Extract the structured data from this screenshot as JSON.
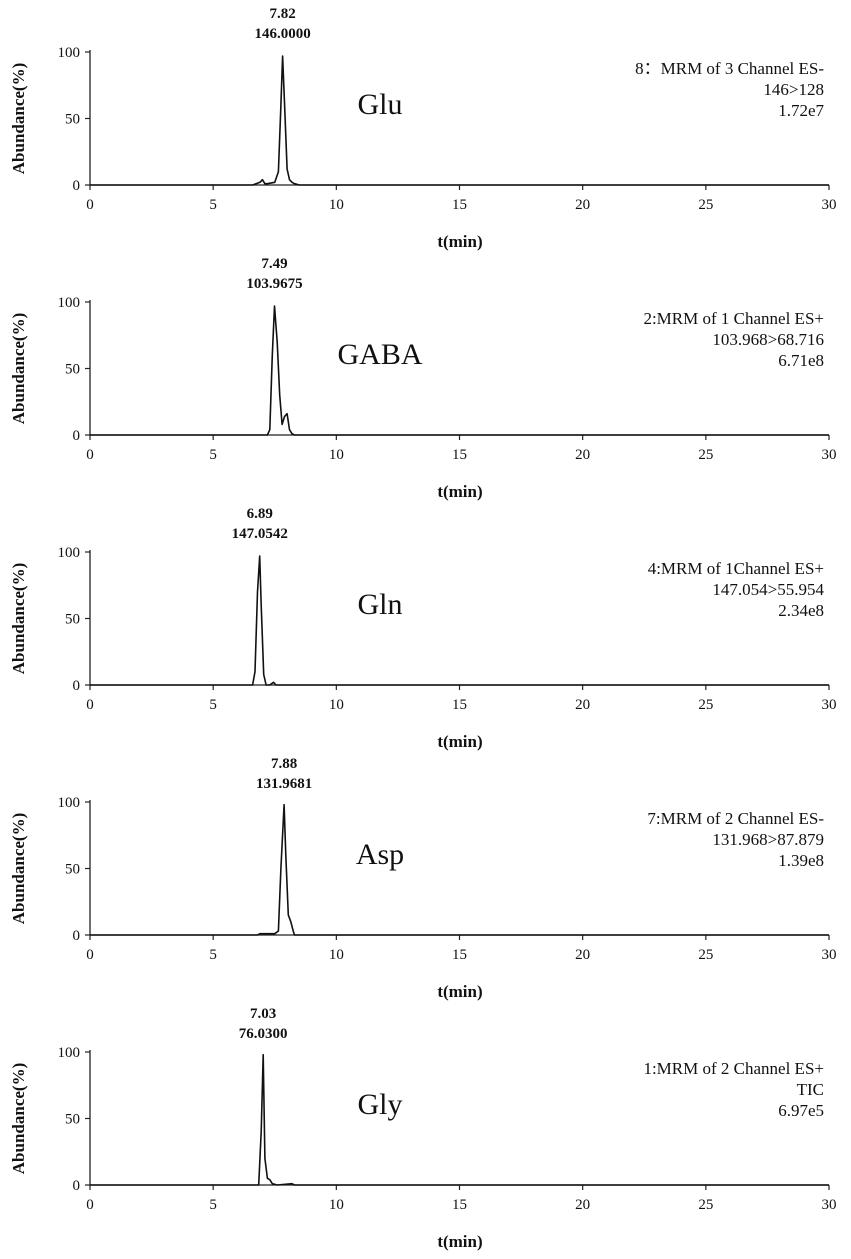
{
  "chart_data": [
    {
      "type": "line",
      "compound": "Glu",
      "peak_time": "7.82",
      "peak_mz": "146.0000",
      "channel_lines": [
        "8：MRM of 3 Channel ES-",
        "146>128",
        "1.72e7"
      ],
      "xlabel": "t(min)",
      "ylabel": "Abundance(%)",
      "xlim": [
        0,
        30
      ],
      "ylim": [
        0,
        100
      ],
      "xticks": [
        "0",
        "5",
        "10",
        "15",
        "20",
        "25",
        "30"
      ],
      "yticks": [
        "0",
        "50",
        "100"
      ],
      "grid": false,
      "series": [
        {
          "x": [
            0,
            6.6,
            6.9,
            7.0,
            7.1,
            7.2,
            7.5,
            7.65,
            7.75,
            7.82,
            7.9,
            8.0,
            8.1,
            8.2,
            8.3,
            8.5,
            30
          ],
          "y": [
            0,
            0,
            2,
            4,
            1,
            1,
            2,
            10,
            60,
            97,
            60,
            12,
            4,
            2,
            1,
            0,
            0
          ]
        }
      ]
    },
    {
      "type": "line",
      "compound": "GABA",
      "peak_time": "7.49",
      "peak_mz": "103.9675",
      "channel_lines": [
        "2:MRM of 1 Channel ES+",
        "103.968>68.716",
        "6.71e8"
      ],
      "xlabel": "t(min)",
      "ylabel": "Abundance(%)",
      "xlim": [
        0,
        30
      ],
      "ylim": [
        0,
        100
      ],
      "xticks": [
        "0",
        "5",
        "10",
        "15",
        "20",
        "25",
        "30"
      ],
      "yticks": [
        "0",
        "50",
        "100"
      ],
      "grid": false,
      "series": [
        {
          "x": [
            0,
            7.2,
            7.3,
            7.4,
            7.49,
            7.6,
            7.7,
            7.8,
            7.9,
            8.0,
            8.1,
            8.2,
            8.3,
            30
          ],
          "y": [
            0,
            0,
            4,
            60,
            97,
            70,
            30,
            8,
            14,
            16,
            4,
            1,
            0,
            0
          ]
        }
      ]
    },
    {
      "type": "line",
      "compound": "Gln",
      "peak_time": "6.89",
      "peak_mz": "147.0542",
      "channel_lines": [
        "4:MRM of 1Channel ES+",
        "147.054>55.954",
        "2.34e8"
      ],
      "xlabel": "t(min)",
      "ylabel": "Abundance(%)",
      "xlim": [
        0,
        30
      ],
      "ylim": [
        0,
        100
      ],
      "xticks": [
        "0",
        "5",
        "10",
        "15",
        "20",
        "25",
        "30"
      ],
      "yticks": [
        "0",
        "50",
        "100"
      ],
      "grid": false,
      "series": [
        {
          "x": [
            0,
            6.6,
            6.7,
            6.8,
            6.89,
            6.95,
            7.05,
            7.15,
            7.3,
            7.45,
            7.55,
            30
          ],
          "y": [
            0,
            0,
            10,
            70,
            97,
            60,
            8,
            0,
            0,
            2,
            0,
            0
          ]
        }
      ]
    },
    {
      "type": "line",
      "compound": "Asp",
      "peak_time": "7.88",
      "peak_mz": "131.9681",
      "channel_lines": [
        "7:MRM of 2 Channel ES-",
        "131.968>87.879",
        "1.39e8"
      ],
      "xlabel": "t(min)",
      "ylabel": "Abundance(%)",
      "xlim": [
        0,
        30
      ],
      "ylim": [
        0,
        100
      ],
      "xticks": [
        "0",
        "5",
        "10",
        "15",
        "20",
        "25",
        "30"
      ],
      "yticks": [
        "0",
        "50",
        "100"
      ],
      "grid": false,
      "series": [
        {
          "x": [
            0,
            6.8,
            6.9,
            7.1,
            7.5,
            7.65,
            7.75,
            7.88,
            7.95,
            8.05,
            8.15,
            8.25,
            8.3,
            30
          ],
          "y": [
            0,
            0,
            1,
            1,
            1,
            3,
            50,
            98,
            60,
            15,
            10,
            3,
            0,
            0
          ]
        }
      ]
    },
    {
      "type": "line",
      "compound": "Gly",
      "peak_time": "7.03",
      "peak_mz": "76.0300",
      "channel_lines": [
        "1:MRM of 2 Channel ES+",
        "TIC",
        "6.97e5"
      ],
      "xlabel": "t(min)",
      "ylabel": "Abundance(%)",
      "xlim": [
        0,
        30
      ],
      "ylim": [
        0,
        100
      ],
      "xticks": [
        "0",
        "5",
        "10",
        "15",
        "20",
        "25",
        "30"
      ],
      "yticks": [
        "0",
        "50",
        "100"
      ],
      "grid": false,
      "series": [
        {
          "x": [
            0,
            6.85,
            6.95,
            7.03,
            7.1,
            7.2,
            7.3,
            7.4,
            7.6,
            8.2,
            8.3,
            30
          ],
          "y": [
            0,
            0,
            40,
            98,
            20,
            5,
            4,
            1,
            0,
            1,
            0,
            0
          ]
        }
      ]
    }
  ],
  "colors": {
    "trace": "#111111",
    "axis": "#222222",
    "text": "#111111",
    "background": "#ffffff"
  }
}
